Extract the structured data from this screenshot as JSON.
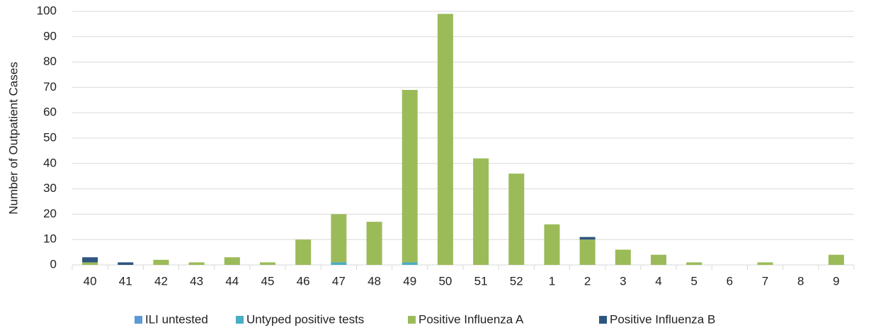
{
  "chart_data": {
    "type": "stacked_bar",
    "y_label": "Number of Outpatient Cases",
    "categories": [
      "40",
      "41",
      "42",
      "43",
      "44",
      "45",
      "46",
      "47",
      "48",
      "49",
      "50",
      "51",
      "52",
      "1",
      "2",
      "3",
      "4",
      "5",
      "6",
      "7",
      "8",
      "9"
    ],
    "series": [
      {
        "name": "ILI untested",
        "color": "#5b9bd5",
        "values": [
          0,
          0,
          0,
          0,
          0,
          0,
          0,
          0,
          0,
          0,
          0,
          0,
          0,
          0,
          0,
          0,
          0,
          0,
          0,
          0,
          0,
          0
        ]
      },
      {
        "name": "Untyped positive tests",
        "color": "#4bacc6",
        "values": [
          0,
          0,
          0,
          0,
          0,
          0,
          0,
          1,
          0,
          1,
          0,
          0,
          0,
          0,
          0,
          0,
          0,
          0,
          0,
          0,
          0,
          0
        ]
      },
      {
        "name": "Positive Influenza A",
        "color": "#9bbb59",
        "values": [
          1,
          0,
          2,
          1,
          3,
          1,
          10,
          19,
          17,
          68,
          99,
          42,
          36,
          16,
          10,
          6,
          4,
          1,
          0,
          1,
          0,
          4
        ]
      },
      {
        "name": "Positive Influenza B",
        "color": "#2d5580",
        "values": [
          2,
          1,
          0,
          0,
          0,
          0,
          0,
          0,
          0,
          0,
          0,
          0,
          0,
          0,
          1,
          0,
          0,
          0,
          0,
          0,
          0,
          0
        ]
      }
    ],
    "ylim": [
      0,
      100
    ],
    "yticks": [
      0,
      10,
      20,
      30,
      40,
      50,
      60,
      70,
      80,
      90,
      100
    ],
    "grid": true
  }
}
